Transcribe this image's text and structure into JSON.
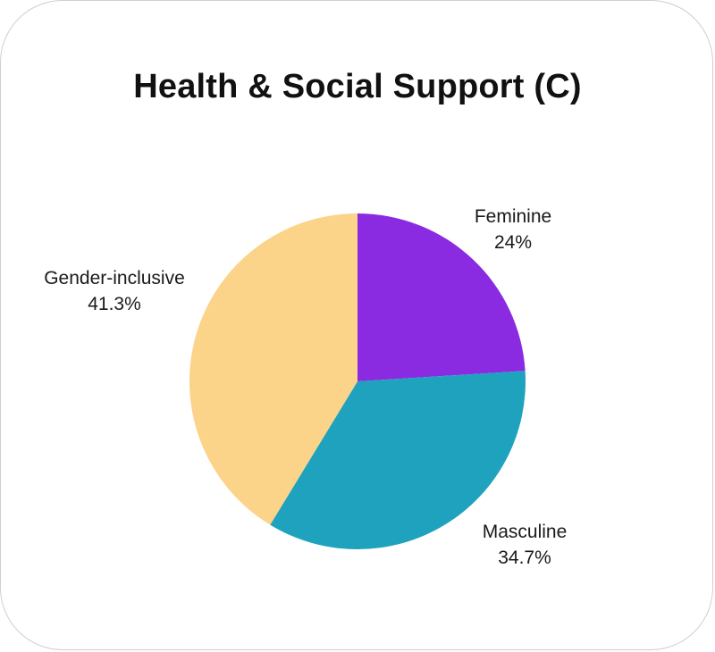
{
  "chart_data": {
    "type": "pie",
    "title": "Health & Social Support (C)",
    "start_angle_deg": 0,
    "direction": "clockwise",
    "slices": [
      {
        "label": "Feminine",
        "value": 24,
        "value_label": "24%",
        "color": "#8a2be2"
      },
      {
        "label": "Masculine",
        "value": 34.7,
        "value_label": "34.7%",
        "color": "#1fa2bd"
      },
      {
        "label": "Gender-inclusive",
        "value": 41.3,
        "value_label": "41.3%",
        "color": "#fbd389"
      }
    ],
    "legend": "none",
    "labels_placement": "outside"
  }
}
